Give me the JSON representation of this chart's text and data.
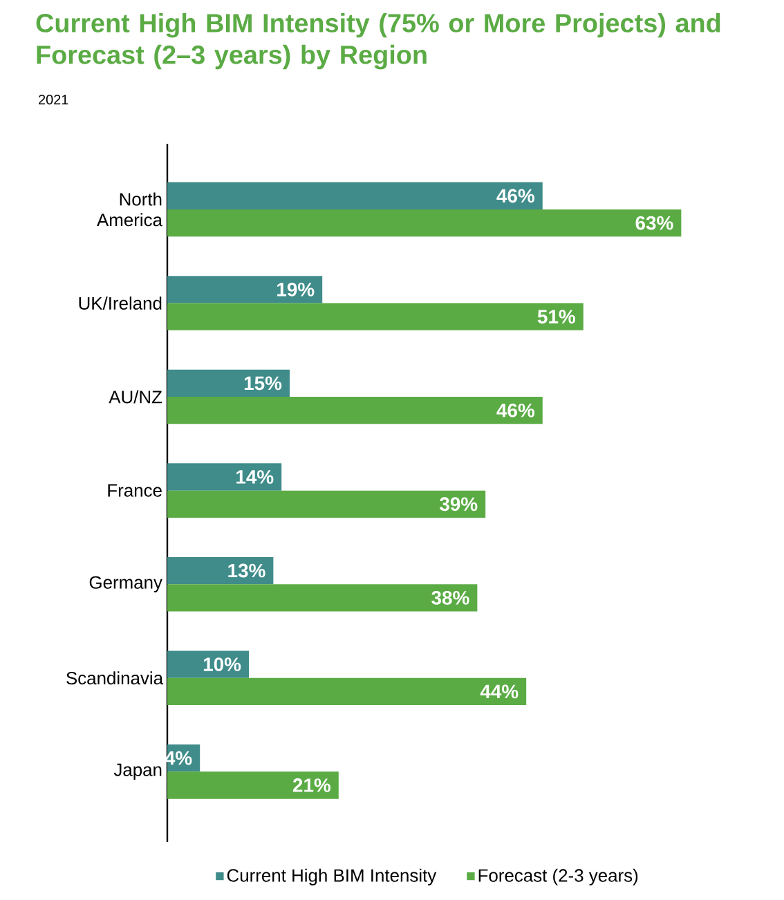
{
  "chart_data": {
    "type": "bar",
    "orientation": "horizontal",
    "title": "Current High BIM Intensity (75% or More Projects) and Forecast (2–3 years) by Region",
    "annotations": [
      "2021"
    ],
    "categories": [
      "North America",
      "UK/Ireland",
      "AU/NZ",
      "France",
      "Germany",
      "Scandinavia",
      "Japan"
    ],
    "series": [
      {
        "name": "Current High BIM Intensity",
        "color": "#3f8c8a",
        "values": [
          46,
          19,
          15,
          14,
          13,
          10,
          4
        ],
        "value_labels": [
          "46%",
          "19%",
          "15%",
          "14%",
          "13%",
          "10%",
          "4%"
        ]
      },
      {
        "name": "Forecast (2-3 years)",
        "color": "#5bab45",
        "values": [
          63,
          51,
          46,
          39,
          38,
          44,
          21
        ],
        "value_labels": [
          "63%",
          "51%",
          "46%",
          "39%",
          "38%",
          "44%",
          "21%"
        ]
      }
    ],
    "legend": "bottom"
  }
}
